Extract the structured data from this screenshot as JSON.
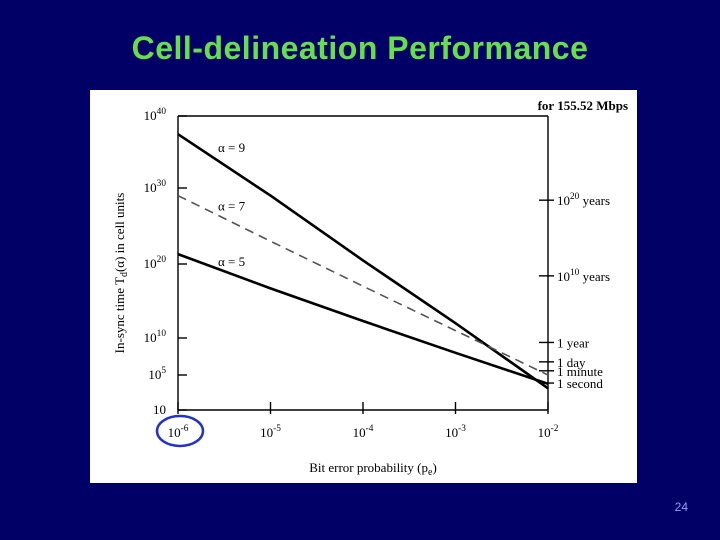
{
  "slide": {
    "title": "Cell-delineation Performance",
    "page_number": "24"
  },
  "colors": {
    "background": "#000066",
    "title": "#66e04a",
    "page_number": "#9999ff",
    "highlight_circle": "#2233cc"
  },
  "chart_data": {
    "type": "line",
    "title": "",
    "xlabel": "Bit error probability (p",
    "xlabel_sub": "e",
    "xlabel_end": ")",
    "ylabel": "In-sync time T",
    "ylabel_sub": "d",
    "ylabel_end": "(α) in cell units",
    "x_scale": "log",
    "y_scale": "log",
    "xlim": [
      1e-06,
      0.01
    ],
    "ylim": [
      10,
      1e+40
    ],
    "x_ticks": [
      {
        "value": 1e-06,
        "base": "10",
        "exp": "-6",
        "highlighted": true
      },
      {
        "value": 1e-05,
        "base": "10",
        "exp": "-5"
      },
      {
        "value": 0.0001,
        "base": "10",
        "exp": "-4"
      },
      {
        "value": 0.001,
        "base": "10",
        "exp": "-3"
      },
      {
        "value": 0.01,
        "base": "10",
        "exp": "-2"
      }
    ],
    "y_ticks_left": [
      {
        "value": 1e+40,
        "base": "10",
        "exp": "40"
      },
      {
        "value": 1e+30,
        "base": "10",
        "exp": "30"
      },
      {
        "value": 1e+20,
        "base": "10",
        "exp": "20"
      },
      {
        "value": 10000000000.0,
        "base": "10",
        "exp": "10"
      },
      {
        "value": 100000.0,
        "base": "10",
        "exp": "5"
      },
      {
        "value": 10,
        "base": "10",
        "exp": ""
      }
    ],
    "right_axis_title": "for 155.52 Mbps",
    "y_ticks_right": [
      {
        "value": 2.5e+28,
        "base": "10",
        "exp": "20",
        "suffix": " years"
      },
      {
        "value": 2.5e+18,
        "base": "10",
        "exp": "10",
        "suffix": " years"
      },
      {
        "value": 2500000000.0,
        "base": "",
        "exp": "",
        "suffix": "1 year"
      },
      {
        "value": 6000000.0,
        "base": "",
        "exp": "",
        "suffix": "1 day"
      },
      {
        "value": 370000.0,
        "base": "",
        "exp": "",
        "suffix": "1 minute"
      },
      {
        "value": 12000.0,
        "base": "",
        "exp": "",
        "suffix": "1 second"
      }
    ],
    "series": [
      {
        "name": "α = 9",
        "style": "solid",
        "x": [
          1e-06,
          1e-05,
          0.0001,
          0.001,
          0.01
        ],
        "y": [
          3e+37,
          1e+29,
          3e+20,
          1000000000000.0,
          3000.0
        ]
      },
      {
        "name": "α = 7",
        "style": "dashed",
        "x": [
          1e-06,
          1e-05,
          0.0001,
          0.001,
          0.01
        ],
        "y": [
          1e+29,
          1e+23,
          1e+17,
          100000000000.0,
          100000.0
        ]
      },
      {
        "name": "α = 5",
        "style": "solid",
        "x": [
          1e-06,
          1e-05,
          0.0001,
          0.001,
          0.01
        ],
        "y": [
          2e+21,
          5e+16,
          2000000000000.0,
          100000000.0,
          10000.0
        ]
      }
    ],
    "grid": false,
    "legend": "inline labels"
  }
}
